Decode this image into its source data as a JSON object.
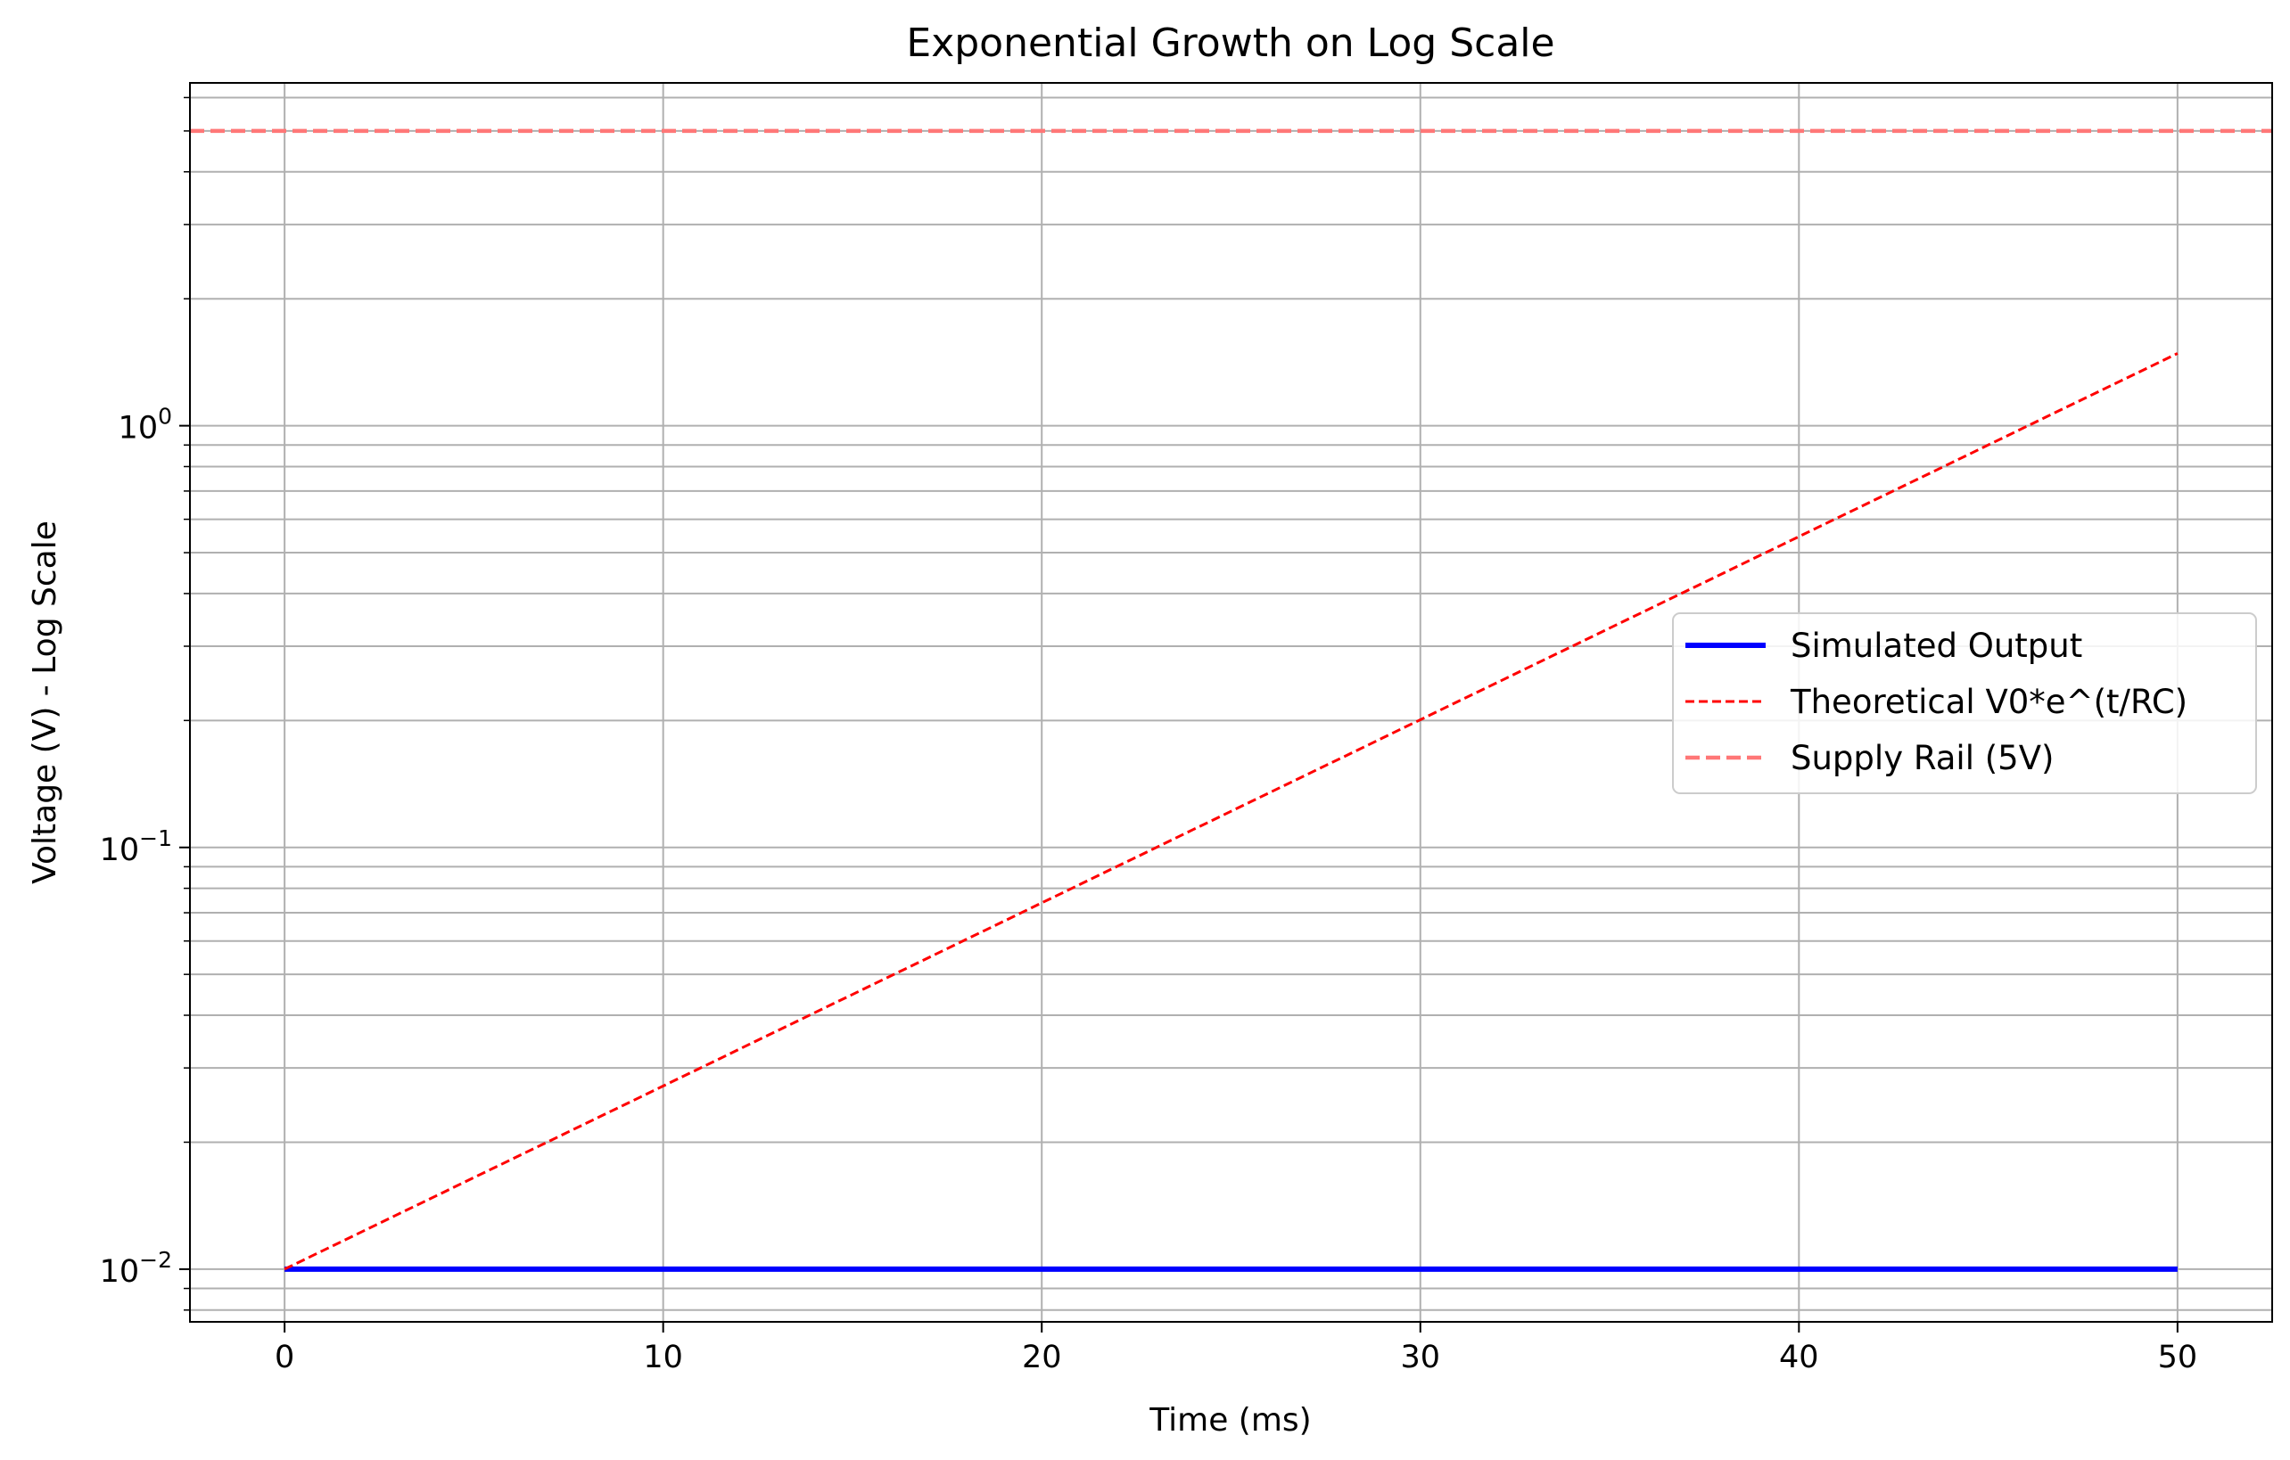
{
  "chart_data": {
    "type": "line",
    "title": "Exponential Growth on Log Scale",
    "xlabel": "Time (ms)",
    "ylabel": "Voltage (V) - Log Scale",
    "yscale": "log",
    "xlim": [
      -2.5,
      52.5
    ],
    "ylim": [
      0.0075,
      6.5
    ],
    "grid": true,
    "x_ticks": [
      0,
      10,
      20,
      30,
      40,
      50
    ],
    "x_tick_labels": [
      "0",
      "10",
      "20",
      "30",
      "40",
      "50"
    ],
    "y_major_ticks": [
      {
        "value": 1,
        "base": "10",
        "exp": "0"
      },
      {
        "value": 0.1,
        "base": "10",
        "exp": "−1"
      },
      {
        "value": 0.01,
        "base": "10",
        "exp": "−2"
      }
    ],
    "y_minor_ticks": [
      0.008,
      0.009,
      0.02,
      0.03,
      0.04,
      0.05,
      0.06,
      0.07,
      0.08,
      0.09,
      0.2,
      0.3,
      0.4,
      0.5,
      0.6,
      0.7,
      0.8,
      0.9,
      2,
      3,
      4,
      5,
      6
    ],
    "legend_position": "center-right",
    "series": [
      {
        "name": "Simulated Output",
        "color": "#0000ff",
        "style": "solid",
        "x": [
          0,
          50
        ],
        "y": [
          0.01,
          0.01
        ]
      },
      {
        "name": "Theoretical V0*e^(t/RC)",
        "color": "#ff0000",
        "style": "dashed",
        "x": [
          0,
          10,
          20,
          30,
          40,
          50
        ],
        "y": [
          0.01,
          0.0272,
          0.0739,
          0.2009,
          0.546,
          1.484
        ]
      },
      {
        "name": "Supply Rail (5V)",
        "color": "#ff7777",
        "style": "dashed-horizontal",
        "x": [
          -2.5,
          52.5
        ],
        "y": [
          5,
          5
        ]
      }
    ]
  }
}
